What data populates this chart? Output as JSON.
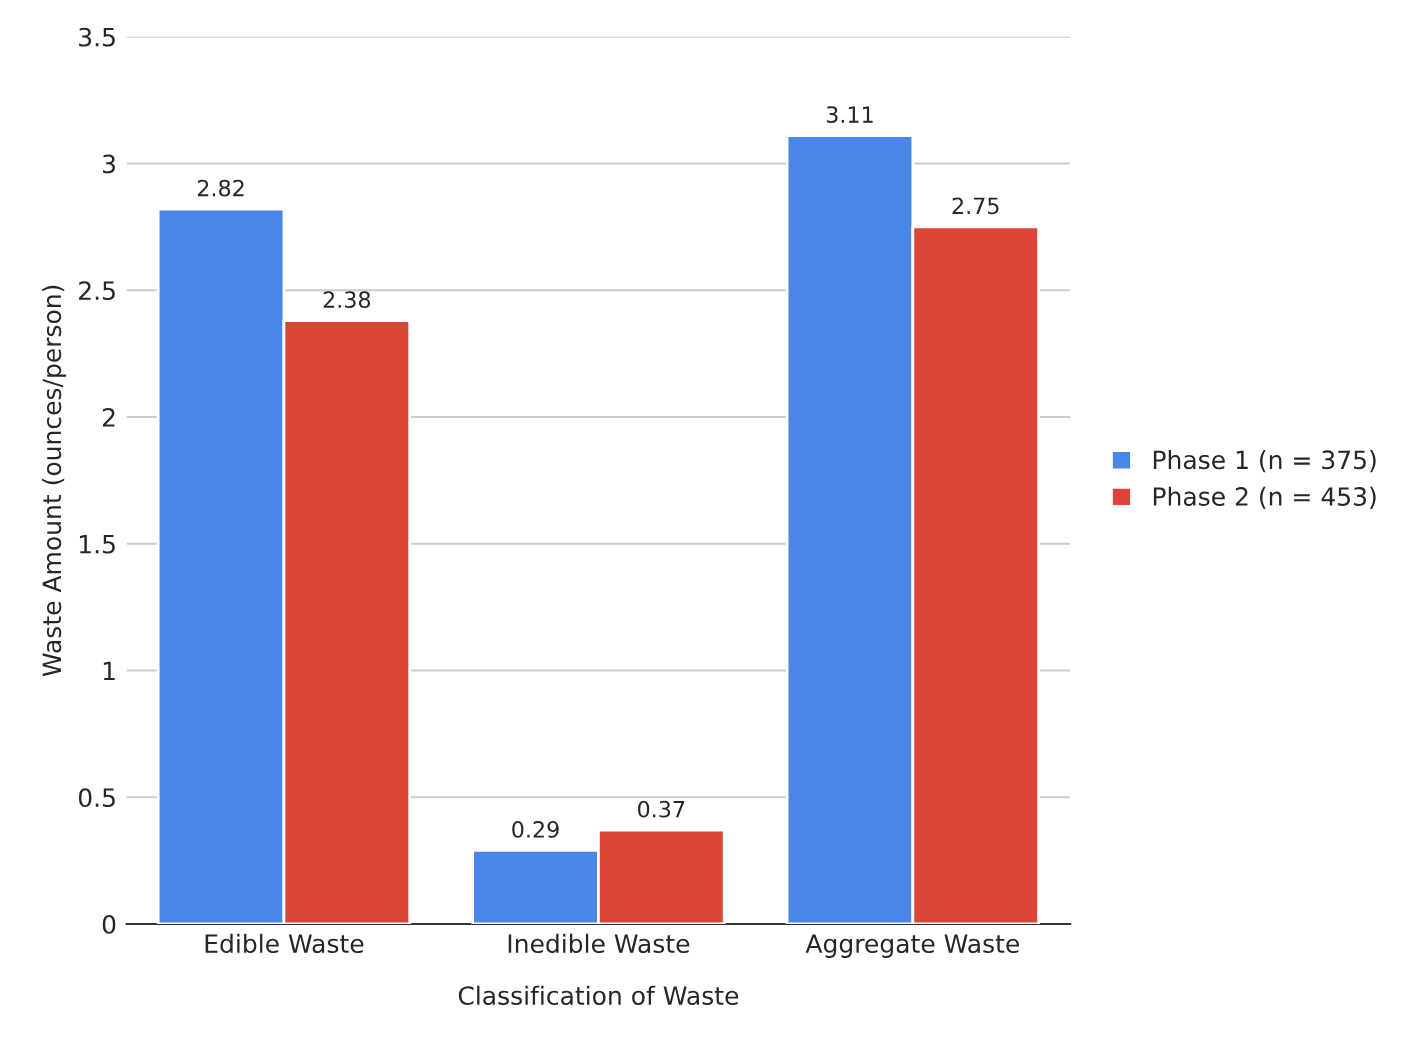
{
  "chart_data": {
    "type": "bar",
    "xlabel": "Classification of Waste",
    "ylabel": "Waste Amount (ounces/person)",
    "categories": [
      "Edible Waste",
      "Inedible Waste",
      "Aggregate Waste"
    ],
    "series": [
      {
        "name": "Phase 1 (n = 375)",
        "color": "#4a86e8",
        "values": [
          2.82,
          0.29,
          3.11
        ]
      },
      {
        "name": "Phase 2 (n = 453)",
        "color": "#db4437",
        "values": [
          2.38,
          0.37,
          2.75
        ]
      }
    ],
    "ylim": [
      0,
      3.5
    ],
    "yticks": [
      0,
      "0.5",
      1,
      "1.5",
      2,
      "2.5",
      3,
      "3.5"
    ],
    "grid": "y",
    "legend": "right",
    "data_labels": true
  }
}
